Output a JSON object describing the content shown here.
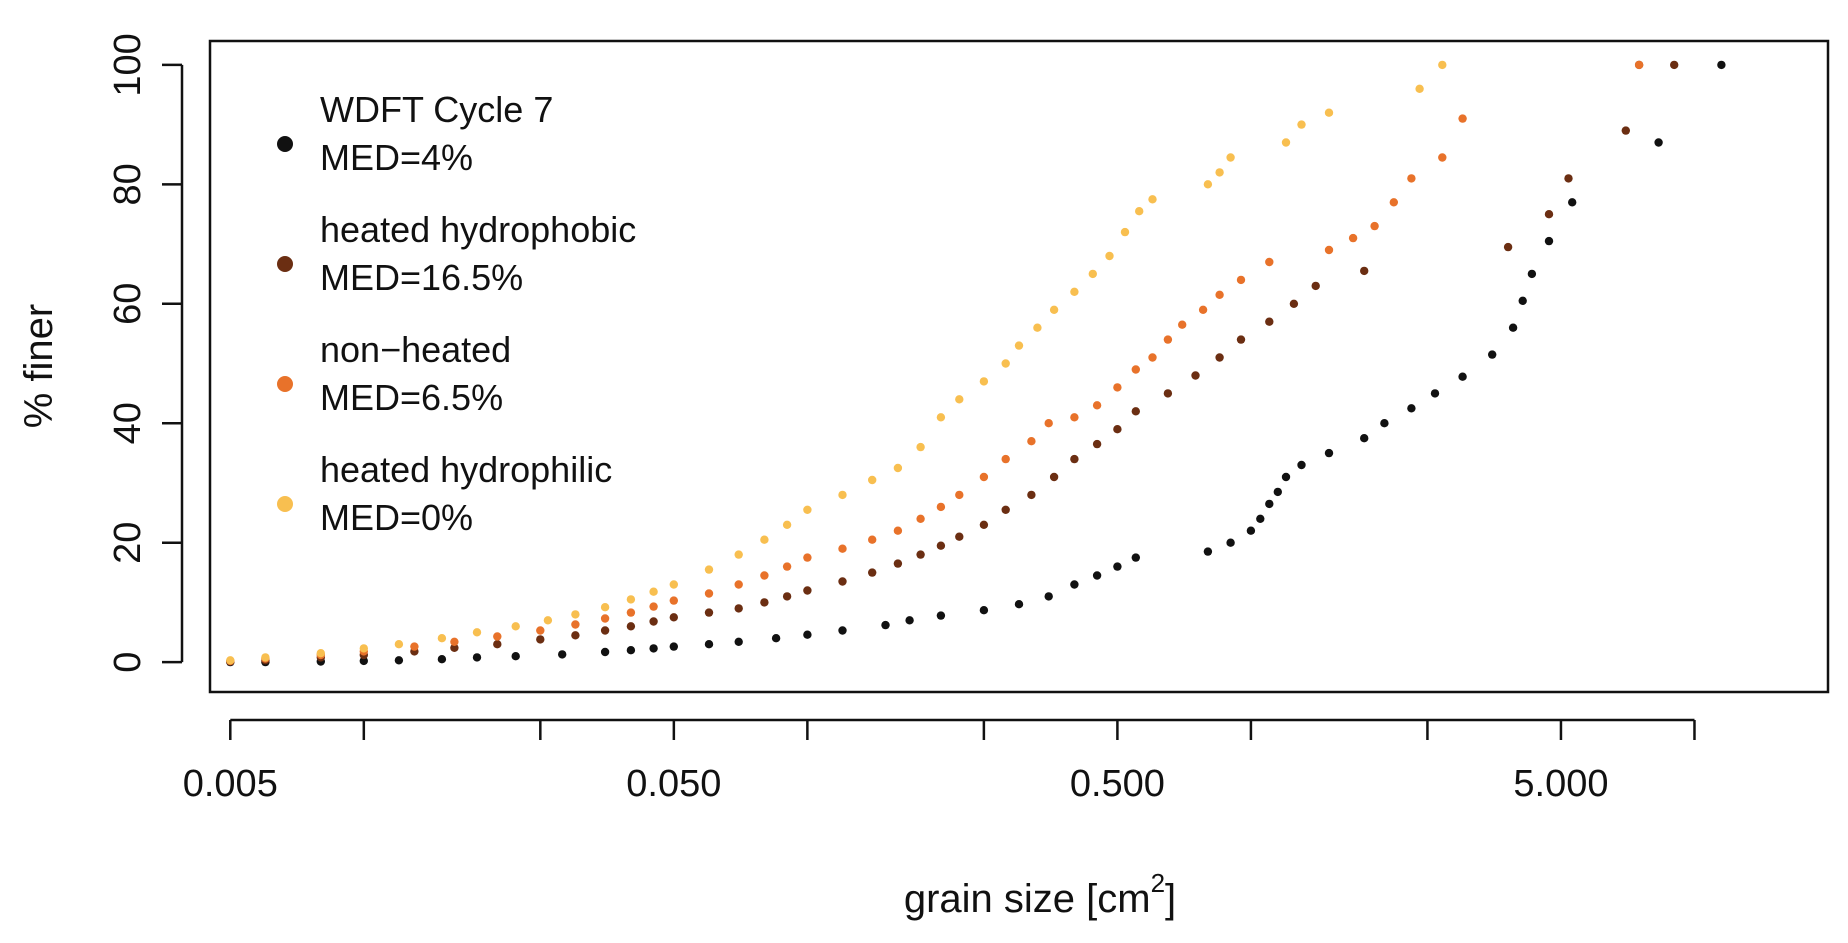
{
  "chart_data": {
    "type": "scatter",
    "x_scale": "log",
    "xlabel": "grain size [cm",
    "xlabel_sup": "2",
    "xlabel_end": "]",
    "ylabel": "% finer",
    "xlim": [
      0.0045,
      20
    ],
    "ylim": [
      -5,
      104
    ],
    "x_tick_values": [
      0.005,
      0.01,
      0.025,
      0.05,
      0.1,
      0.25,
      0.5,
      1,
      2.5,
      5,
      10
    ],
    "x_tick_labels": [
      {
        "value": 0.005,
        "label": "0.005"
      },
      {
        "value": 0.05,
        "label": "0.050"
      },
      {
        "value": 0.5,
        "label": "0.500"
      },
      {
        "value": 5,
        "label": "5.000"
      }
    ],
    "y_ticks": [
      0,
      20,
      40,
      60,
      80,
      100
    ],
    "y_tick_labels": [
      "0",
      "20",
      "40",
      "60",
      "80",
      "100"
    ],
    "legend_position": "top-left",
    "grid": false,
    "series": [
      {
        "name": "WDFT Cycle 7",
        "name_line2": "MED=4%",
        "color": "#111111",
        "points": [
          [
            0.005,
            0
          ],
          [
            0.006,
            0
          ],
          [
            0.008,
            0.1
          ],
          [
            0.01,
            0.2
          ],
          [
            0.012,
            0.3
          ],
          [
            0.015,
            0.5
          ],
          [
            0.018,
            0.8
          ],
          [
            0.022,
            1.0
          ],
          [
            0.028,
            1.3
          ],
          [
            0.035,
            1.7
          ],
          [
            0.04,
            2.0
          ],
          [
            0.045,
            2.3
          ],
          [
            0.05,
            2.6
          ],
          [
            0.06,
            3.0
          ],
          [
            0.07,
            3.4
          ],
          [
            0.085,
            4.0
          ],
          [
            0.1,
            4.6
          ],
          [
            0.12,
            5.3
          ],
          [
            0.15,
            6.2
          ],
          [
            0.17,
            7.0
          ],
          [
            0.2,
            7.8
          ],
          [
            0.25,
            8.7
          ],
          [
            0.3,
            9.7
          ],
          [
            0.35,
            11.0
          ],
          [
            0.4,
            13.0
          ],
          [
            0.45,
            14.5
          ],
          [
            0.5,
            16.0
          ],
          [
            0.55,
            17.5
          ],
          [
            0.8,
            18.5
          ],
          [
            0.9,
            20.0
          ],
          [
            1.0,
            22.0
          ],
          [
            1.05,
            24.0
          ],
          [
            1.1,
            26.5
          ],
          [
            1.15,
            28.5
          ],
          [
            1.2,
            31.0
          ],
          [
            1.3,
            33.0
          ],
          [
            1.5,
            35.0
          ],
          [
            1.8,
            37.5
          ],
          [
            2.0,
            40.0
          ],
          [
            2.3,
            42.5
          ],
          [
            2.6,
            45.0
          ],
          [
            3.0,
            47.8
          ],
          [
            3.5,
            51.5
          ],
          [
            3.9,
            56.0
          ],
          [
            4.1,
            60.5
          ],
          [
            4.3,
            65.0
          ],
          [
            4.7,
            70.5
          ],
          [
            5.3,
            77.0
          ],
          [
            8.3,
            87.0
          ],
          [
            11.5,
            100
          ]
        ]
      },
      {
        "name": "heated hydrophobic",
        "name_line2": "MED=16.5%",
        "color": "#6b2e12",
        "points": [
          [
            0.005,
            0.1
          ],
          [
            0.006,
            0.3
          ],
          [
            0.008,
            0.8
          ],
          [
            0.01,
            1.2
          ],
          [
            0.013,
            1.8
          ],
          [
            0.016,
            2.4
          ],
          [
            0.02,
            3.0
          ],
          [
            0.025,
            3.8
          ],
          [
            0.03,
            4.5
          ],
          [
            0.035,
            5.3
          ],
          [
            0.04,
            6.0
          ],
          [
            0.045,
            6.8
          ],
          [
            0.05,
            7.5
          ],
          [
            0.06,
            8.3
          ],
          [
            0.07,
            9.0
          ],
          [
            0.08,
            10.0
          ],
          [
            0.09,
            11.0
          ],
          [
            0.1,
            12.0
          ],
          [
            0.12,
            13.5
          ],
          [
            0.14,
            15.0
          ],
          [
            0.16,
            16.5
          ],
          [
            0.18,
            18.0
          ],
          [
            0.2,
            19.5
          ],
          [
            0.22,
            21.0
          ],
          [
            0.25,
            23.0
          ],
          [
            0.28,
            25.5
          ],
          [
            0.32,
            28.0
          ],
          [
            0.36,
            31.0
          ],
          [
            0.4,
            34.0
          ],
          [
            0.45,
            36.5
          ],
          [
            0.5,
            39.0
          ],
          [
            0.55,
            42.0
          ],
          [
            0.65,
            45.0
          ],
          [
            0.75,
            48.0
          ],
          [
            0.85,
            51.0
          ],
          [
            0.95,
            54.0
          ],
          [
            1.1,
            57.0
          ],
          [
            1.25,
            60.0
          ],
          [
            1.4,
            63.0
          ],
          [
            1.8,
            65.5
          ],
          [
            3.8,
            69.5
          ],
          [
            4.7,
            75.0
          ],
          [
            5.2,
            81.0
          ],
          [
            7.0,
            89.0
          ],
          [
            7.5,
            100
          ],
          [
            9.0,
            100
          ]
        ]
      },
      {
        "name": "non−heated",
        "name_line2": "MED=6.5%",
        "color": "#e8722a",
        "points": [
          [
            0.005,
            0.2
          ],
          [
            0.006,
            0.6
          ],
          [
            0.008,
            1.2
          ],
          [
            0.01,
            1.8
          ],
          [
            0.013,
            2.6
          ],
          [
            0.016,
            3.4
          ],
          [
            0.02,
            4.3
          ],
          [
            0.025,
            5.3
          ],
          [
            0.03,
            6.3
          ],
          [
            0.035,
            7.3
          ],
          [
            0.04,
            8.3
          ],
          [
            0.045,
            9.3
          ],
          [
            0.05,
            10.3
          ],
          [
            0.06,
            11.5
          ],
          [
            0.07,
            13.0
          ],
          [
            0.08,
            14.5
          ],
          [
            0.09,
            16.0
          ],
          [
            0.1,
            17.5
          ],
          [
            0.12,
            19.0
          ],
          [
            0.14,
            20.5
          ],
          [
            0.16,
            22.0
          ],
          [
            0.18,
            24.0
          ],
          [
            0.2,
            26.0
          ],
          [
            0.22,
            28.0
          ],
          [
            0.25,
            31.0
          ],
          [
            0.28,
            34.0
          ],
          [
            0.32,
            37.0
          ],
          [
            0.35,
            40.0
          ],
          [
            0.4,
            41.0
          ],
          [
            0.45,
            43.0
          ],
          [
            0.5,
            46.0
          ],
          [
            0.55,
            49.0
          ],
          [
            0.6,
            51.0
          ],
          [
            0.65,
            54.0
          ],
          [
            0.7,
            56.5
          ],
          [
            0.78,
            59.0
          ],
          [
            0.85,
            61.5
          ],
          [
            0.95,
            64.0
          ],
          [
            1.1,
            67.0
          ],
          [
            1.5,
            69.0
          ],
          [
            1.7,
            71.0
          ],
          [
            1.9,
            73.0
          ],
          [
            2.1,
            77.0
          ],
          [
            2.3,
            81.0
          ],
          [
            2.7,
            84.5
          ],
          [
            3.0,
            91.0
          ],
          [
            7.5,
            100
          ]
        ]
      },
      {
        "name": "heated hydrophilic",
        "name_line2": "MED=0%",
        "color": "#f8bf50",
        "points": [
          [
            0.005,
            0.3
          ],
          [
            0.006,
            0.8
          ],
          [
            0.008,
            1.5
          ],
          [
            0.01,
            2.3
          ],
          [
            0.012,
            3.0
          ],
          [
            0.015,
            4.0
          ],
          [
            0.018,
            5.0
          ],
          [
            0.022,
            6.0
          ],
          [
            0.026,
            7.0
          ],
          [
            0.03,
            8.0
          ],
          [
            0.035,
            9.2
          ],
          [
            0.04,
            10.5
          ],
          [
            0.045,
            11.8
          ],
          [
            0.05,
            13.0
          ],
          [
            0.06,
            15.5
          ],
          [
            0.07,
            18.0
          ],
          [
            0.08,
            20.5
          ],
          [
            0.09,
            23.0
          ],
          [
            0.1,
            25.5
          ],
          [
            0.12,
            28.0
          ],
          [
            0.14,
            30.5
          ],
          [
            0.16,
            32.5
          ],
          [
            0.18,
            36.0
          ],
          [
            0.2,
            41.0
          ],
          [
            0.22,
            44.0
          ],
          [
            0.25,
            47.0
          ],
          [
            0.28,
            50.0
          ],
          [
            0.3,
            53.0
          ],
          [
            0.33,
            56.0
          ],
          [
            0.36,
            59.0
          ],
          [
            0.4,
            62.0
          ],
          [
            0.44,
            65.0
          ],
          [
            0.48,
            68.0
          ],
          [
            0.52,
            72.0
          ],
          [
            0.56,
            75.5
          ],
          [
            0.6,
            77.5
          ],
          [
            0.8,
            80.0
          ],
          [
            0.85,
            82.0
          ],
          [
            0.9,
            84.5
          ],
          [
            1.2,
            87.0
          ],
          [
            1.3,
            90.0
          ],
          [
            1.5,
            92.0
          ],
          [
            2.4,
            96.0
          ],
          [
            2.7,
            100
          ]
        ]
      }
    ]
  }
}
